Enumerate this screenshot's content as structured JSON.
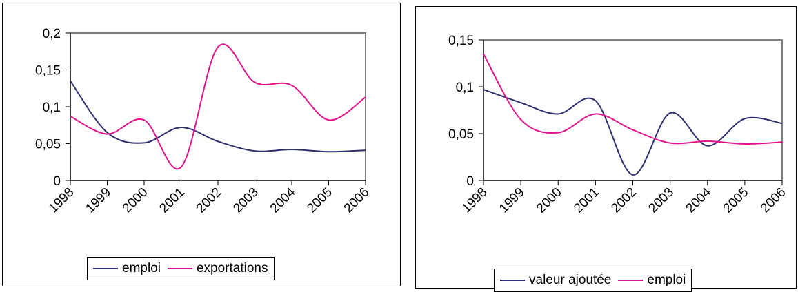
{
  "chart_data": [
    {
      "type": "line",
      "categories": [
        "1998",
        "1999",
        "2000",
        "2001",
        "2002",
        "2003",
        "2004",
        "2005",
        "2006"
      ],
      "yticks": [
        "0",
        "0,05",
        "0,1",
        "0,15",
        "0,2"
      ],
      "ylim": [
        0,
        0.2
      ],
      "series": [
        {
          "name": "emploi",
          "color": "#2e2e6e",
          "values": [
            0.135,
            0.065,
            0.051,
            0.072,
            0.053,
            0.04,
            0.042,
            0.039,
            0.041
          ]
        },
        {
          "name": "exportations",
          "color": "#e0148c",
          "values": [
            0.087,
            0.063,
            0.082,
            0.018,
            0.181,
            0.133,
            0.129,
            0.082,
            0.113
          ]
        }
      ],
      "legend": "bottom",
      "grid": false,
      "title": "",
      "xlabel": "",
      "ylabel": ""
    },
    {
      "type": "line",
      "categories": [
        "1998",
        "1999",
        "2000",
        "2001",
        "2002",
        "2003",
        "2004",
        "2005",
        "2006"
      ],
      "yticks": [
        "0",
        "0,05",
        "0,1",
        "0,15"
      ],
      "ylim": [
        0,
        0.15
      ],
      "series": [
        {
          "name": "valeur ajoutée",
          "color": "#2e2e6e",
          "values": [
            0.097,
            0.083,
            0.071,
            0.085,
            0.006,
            0.072,
            0.037,
            0.066,
            0.061
          ]
        },
        {
          "name": "emploi",
          "color": "#e0148c",
          "values": [
            0.135,
            0.065,
            0.051,
            0.071,
            0.054,
            0.04,
            0.042,
            0.039,
            0.041
          ]
        }
      ],
      "legend": "bottom",
      "grid": false,
      "title": "",
      "xlabel": "",
      "ylabel": ""
    }
  ]
}
